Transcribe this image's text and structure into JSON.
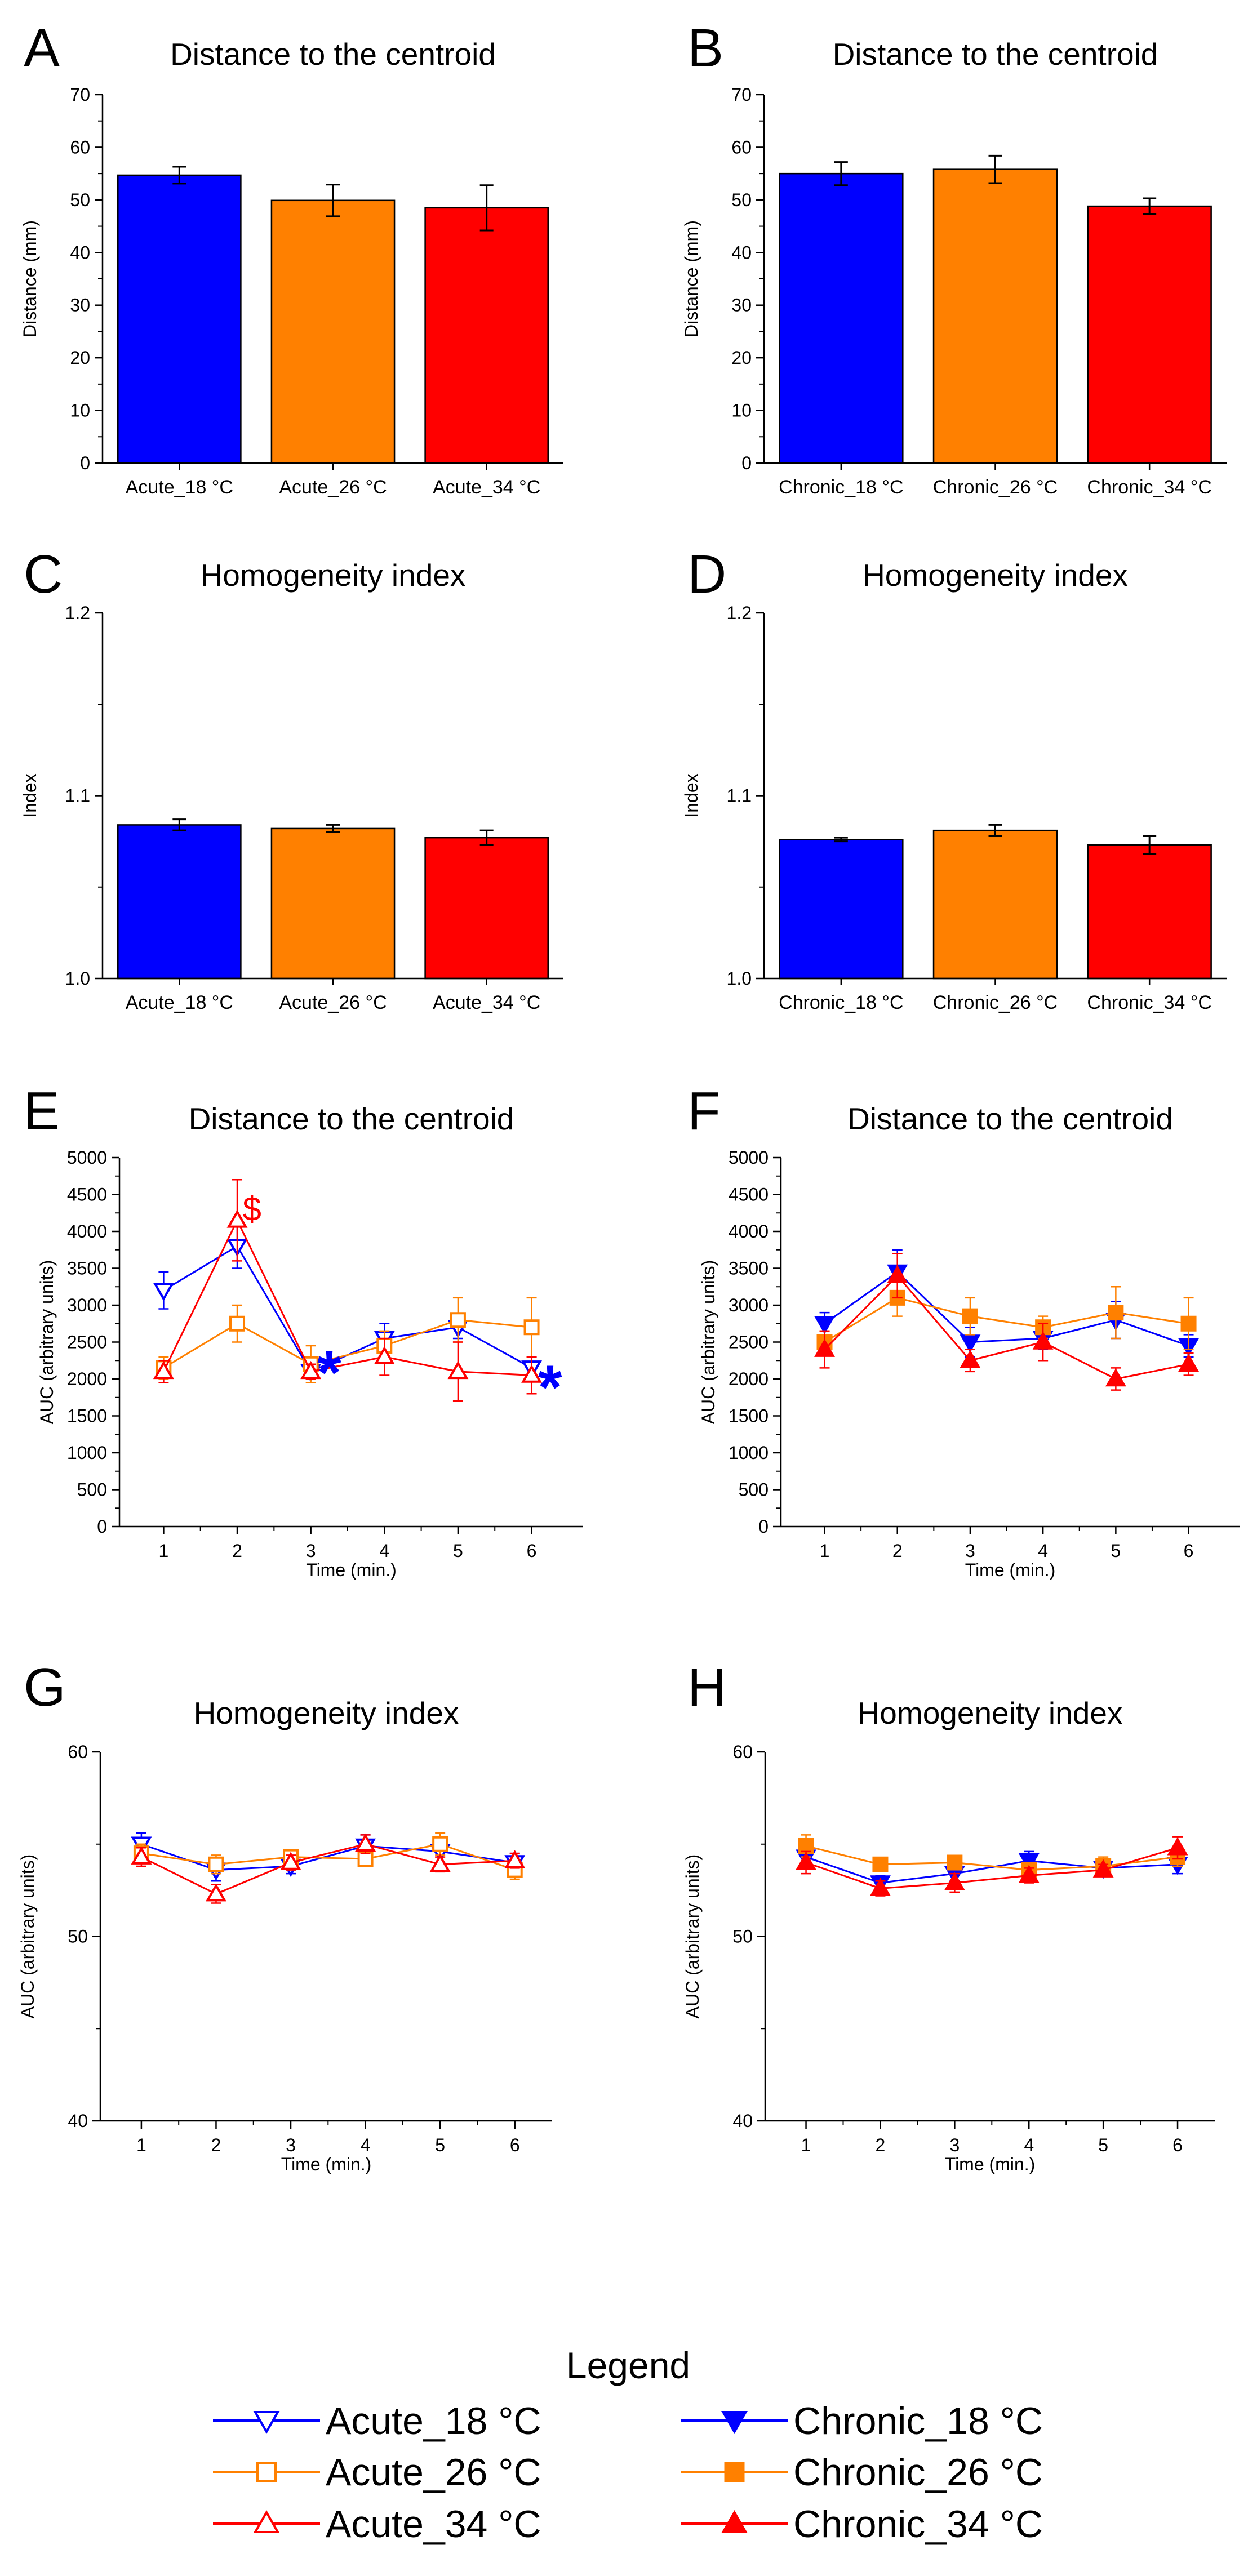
{
  "legend": {
    "title": "Legend",
    "entries": [
      {
        "label": "Acute_18 °C",
        "color": "#0000ff",
        "marker": "triangle-down",
        "filled": false
      },
      {
        "label": "Acute_26 °C",
        "color": "#ff8000",
        "marker": "square",
        "filled": false
      },
      {
        "label": "Acute_34 °C",
        "color": "#ff0000",
        "marker": "triangle-up",
        "filled": false
      },
      {
        "label": "Chronic_18 °C",
        "color": "#0000ff",
        "marker": "triangle-down",
        "filled": true
      },
      {
        "label": "Chronic_26 °C",
        "color": "#ff8000",
        "marker": "square",
        "filled": true
      },
      {
        "label": "Chronic_34 °C",
        "color": "#ff0000",
        "marker": "triangle-up",
        "filled": true
      }
    ]
  },
  "chart_data": [
    {
      "panel": "A",
      "type": "bar",
      "title": "Distance to the centroid",
      "ylabel": "Distance (mm)",
      "ylim": [
        0,
        70
      ],
      "yticks": [
        "0",
        "10",
        "20",
        "30",
        "40",
        "50",
        "60",
        "70"
      ],
      "categories": [
        "Acute_18 °C",
        "Acute_26 °C",
        "Acute_34 °C"
      ],
      "values": [
        54.7,
        49.9,
        48.5
      ],
      "errors": [
        1.6,
        3.0,
        4.3
      ],
      "colors": [
        "#0000ff",
        "#ff8000",
        "#ff0000"
      ]
    },
    {
      "panel": "B",
      "type": "bar",
      "title": "Distance to the centroid",
      "ylabel": "Distance (mm)",
      "ylim": [
        0,
        70
      ],
      "yticks": [
        "0",
        "10",
        "20",
        "30",
        "40",
        "50",
        "60",
        "70"
      ],
      "categories": [
        "Chronic_18 °C",
        "Chronic_26 °C",
        "Chronic_34 °C"
      ],
      "values": [
        55.0,
        55.8,
        48.8
      ],
      "errors": [
        2.2,
        2.6,
        1.5
      ],
      "colors": [
        "#0000ff",
        "#ff8000",
        "#ff0000"
      ]
    },
    {
      "panel": "C",
      "type": "bar",
      "title": "Homogeneity index",
      "ylabel": "Index",
      "ylim": [
        1.0,
        1.2
      ],
      "yticks": [
        "1.0",
        "1.1",
        "1.2"
      ],
      "categories": [
        "Acute_18 °C",
        "Acute_26 °C",
        "Acute_34 °C"
      ],
      "values": [
        1.084,
        1.082,
        1.077
      ],
      "errors": [
        0.003,
        0.002,
        0.004
      ],
      "colors": [
        "#0000ff",
        "#ff8000",
        "#ff0000"
      ]
    },
    {
      "panel": "D",
      "type": "bar",
      "title": "Homogeneity index",
      "ylabel": "Index",
      "ylim": [
        1.0,
        1.2
      ],
      "yticks": [
        "1.0",
        "1.1",
        "1.2"
      ],
      "categories": [
        "Chronic_18 °C",
        "Chronic_26 °C",
        "Chronic_34 °C"
      ],
      "values": [
        1.076,
        1.081,
        1.073
      ],
      "errors": [
        0.001,
        0.003,
        0.005
      ],
      "colors": [
        "#0000ff",
        "#ff8000",
        "#ff0000"
      ]
    },
    {
      "panel": "E",
      "type": "line",
      "title": "Distance to the centroid",
      "xlabel": "Time (min.)",
      "ylabel": "AUC (arbitrary units)",
      "x": [
        1,
        2,
        3,
        4,
        5,
        6
      ],
      "xticks": [
        "1",
        "2",
        "3",
        "4",
        "5",
        "6"
      ],
      "xlim": [
        0.4,
        6.7
      ],
      "ylim": [
        0,
        5000
      ],
      "yticks": [
        "0",
        "500",
        "1000",
        "1500",
        "2000",
        "2500",
        "3000",
        "3500",
        "4000",
        "4500",
        "5000"
      ],
      "series": [
        {
          "name": "Acute_18 °C",
          "color": "#0000ff",
          "marker": "triangle-down",
          "filled": false,
          "values": [
            3200,
            3800,
            2100,
            2550,
            2700,
            2150
          ],
          "errors": [
            250,
            300,
            100,
            200,
            150,
            150
          ]
        },
        {
          "name": "Acute_26 °C",
          "color": "#ff8000",
          "marker": "square",
          "filled": false,
          "values": [
            2150,
            2750,
            2200,
            2450,
            2800,
            2700
          ],
          "errors": [
            150,
            250,
            250,
            200,
            300,
            400
          ]
        },
        {
          "name": "Acute_34 °C",
          "color": "#ff0000",
          "marker": "triangle-up",
          "filled": false,
          "values": [
            2100,
            4150,
            2100,
            2300,
            2100,
            2050
          ],
          "errors": [
            150,
            550,
            100,
            250,
            400,
            250
          ]
        }
      ],
      "annotations": [
        {
          "text": "$",
          "x": 2.2,
          "y": 4150,
          "color": "#ff0000"
        },
        {
          "text": "*",
          "x": 3.25,
          "y": 2150,
          "color": "#0000ff"
        },
        {
          "text": "*",
          "x": 6.25,
          "y": 1950,
          "color": "#0000ff"
        }
      ]
    },
    {
      "panel": "F",
      "type": "line",
      "title": "Distance to the centroid",
      "xlabel": "Time (min.)",
      "ylabel": "AUC (arbitrary units)",
      "x": [
        1,
        2,
        3,
        4,
        5,
        6
      ],
      "xticks": [
        "1",
        "2",
        "3",
        "4",
        "5",
        "6"
      ],
      "xlim": [
        0.4,
        6.7
      ],
      "ylim": [
        0,
        5000
      ],
      "yticks": [
        "0",
        "500",
        "1000",
        "1500",
        "2000",
        "2500",
        "3000",
        "3500",
        "4000",
        "4500",
        "5000"
      ],
      "series": [
        {
          "name": "Chronic_18 °C",
          "color": "#0000ff",
          "marker": "triangle-down",
          "filled": true,
          "values": [
            2750,
            3450,
            2500,
            2550,
            2800,
            2450
          ],
          "errors": [
            150,
            300,
            200,
            150,
            250,
            150
          ]
        },
        {
          "name": "Chronic_26 °C",
          "color": "#ff8000",
          "marker": "square",
          "filled": true,
          "values": [
            2500,
            3100,
            2850,
            2700,
            2900,
            2750
          ],
          "errors": [
            150,
            250,
            250,
            150,
            350,
            350
          ]
        },
        {
          "name": "Chronic_34 °C",
          "color": "#ff0000",
          "marker": "triangle-up",
          "filled": true,
          "values": [
            2400,
            3400,
            2250,
            2500,
            2000,
            2200
          ],
          "errors": [
            250,
            300,
            150,
            250,
            150,
            150
          ]
        }
      ]
    },
    {
      "panel": "G",
      "type": "line",
      "title": "Homogeneity index",
      "xlabel": "Time (min.)",
      "ylabel": "AUC (arbitrary units)",
      "x": [
        1,
        2,
        3,
        4,
        5,
        6
      ],
      "xticks": [
        "1",
        "2",
        "3",
        "4",
        "5",
        "6"
      ],
      "xlim": [
        0.45,
        6.5
      ],
      "ylim": [
        40,
        60
      ],
      "yticks": [
        "40",
        "50",
        "60"
      ],
      "series": [
        {
          "name": "Acute_18 °C",
          "color": "#0000ff",
          "marker": "triangle-down",
          "filled": false,
          "values": [
            55.0,
            53.6,
            53.8,
            54.9,
            54.6,
            54.0
          ],
          "errors": [
            0.6,
            0.6,
            0.4,
            0.6,
            0.6,
            0.5
          ]
        },
        {
          "name": "Acute_26 °C",
          "color": "#ff8000",
          "marker": "square",
          "filled": false,
          "values": [
            54.5,
            53.9,
            54.3,
            54.2,
            55.0,
            53.6
          ],
          "errors": [
            0.5,
            0.5,
            0.4,
            0.4,
            0.6,
            0.5
          ]
        },
        {
          "name": "Acute_34 °C",
          "color": "#ff0000",
          "marker": "triangle-up",
          "filled": false,
          "values": [
            54.3,
            52.3,
            54.0,
            55.0,
            53.9,
            54.1
          ],
          "errors": [
            0.5,
            0.5,
            0.4,
            0.5,
            0.4,
            0.4
          ]
        }
      ]
    },
    {
      "panel": "H",
      "type": "line",
      "title": "Homogeneity index",
      "xlabel": "Time (min.)",
      "ylabel": "AUC (arbitrary units)",
      "x": [
        1,
        2,
        3,
        4,
        5,
        6
      ],
      "xticks": [
        "1",
        "2",
        "3",
        "4",
        "5",
        "6"
      ],
      "xlim": [
        0.45,
        6.5
      ],
      "ylim": [
        40,
        60
      ],
      "yticks": [
        "40",
        "50",
        "60"
      ],
      "series": [
        {
          "name": "Chronic_18 °C",
          "color": "#0000ff",
          "marker": "triangle-down",
          "filled": true,
          "values": [
            54.3,
            52.9,
            53.4,
            54.1,
            53.7,
            53.9
          ],
          "errors": [
            0.6,
            0.4,
            0.4,
            0.5,
            0.4,
            0.5
          ]
        },
        {
          "name": "Chronic_26 °C",
          "color": "#ff8000",
          "marker": "square",
          "filled": true,
          "values": [
            54.9,
            53.9,
            54.0,
            53.6,
            53.8,
            54.3
          ],
          "errors": [
            0.6,
            0.3,
            0.3,
            0.3,
            0.5,
            0.5
          ]
        },
        {
          "name": "Chronic_34 °C",
          "color": "#ff0000",
          "marker": "triangle-up",
          "filled": true,
          "values": [
            54.0,
            52.6,
            52.9,
            53.3,
            53.6,
            54.8
          ],
          "errors": [
            0.6,
            0.4,
            0.5,
            0.4,
            0.3,
            0.6
          ]
        }
      ]
    }
  ]
}
